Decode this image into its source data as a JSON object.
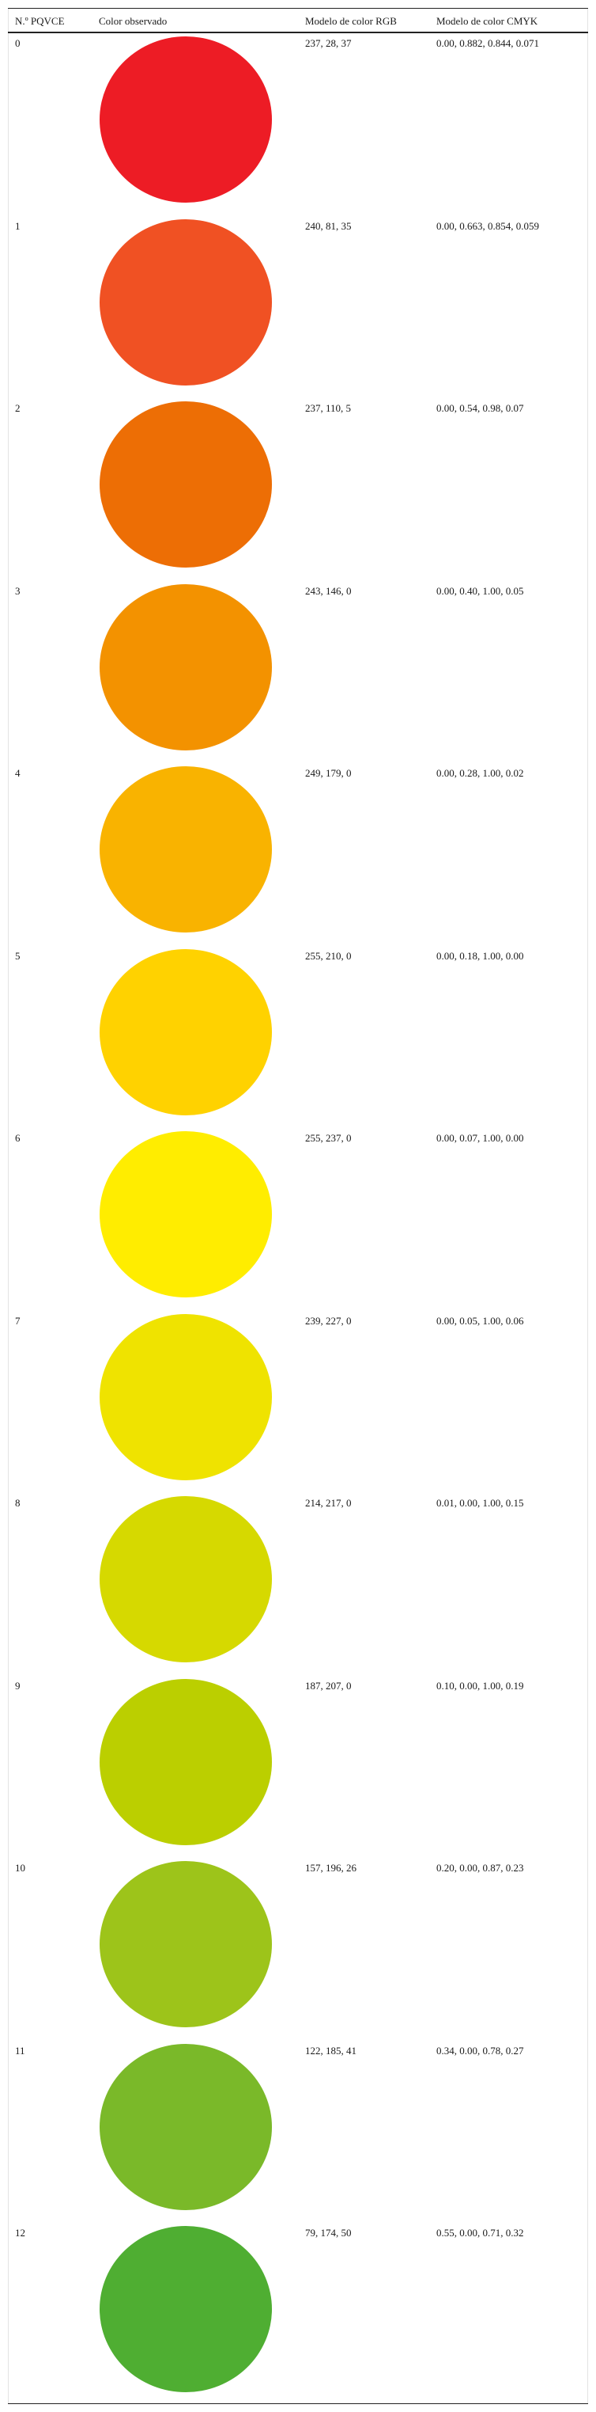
{
  "table": {
    "headers": {
      "no": "N.º PQVCE",
      "color": "Color observado",
      "rgb": "Modelo de color RGB",
      "cmyk": "Modelo de color CMYK"
    },
    "rows": [
      {
        "no": "0",
        "rgb": "237, 28, 37",
        "cmyk": "0.00, 0.882, 0.844, 0.071",
        "color": "#ED1C25"
      },
      {
        "no": "1",
        "rgb": "240, 81, 35",
        "cmyk": "0.00, 0.663, 0.854, 0.059",
        "color": "#F05123"
      },
      {
        "no": "2",
        "rgb": "237, 110, 5",
        "cmyk": "0.00, 0.54, 0.98, 0.07",
        "color": "#ED6E05"
      },
      {
        "no": "3",
        "rgb": "243, 146, 0",
        "cmyk": "0.00, 0.40, 1.00, 0.05",
        "color": "#F39200"
      },
      {
        "no": "4",
        "rgb": "249, 179, 0",
        "cmyk": "0.00, 0.28, 1.00, 0.02",
        "color": "#F9B300"
      },
      {
        "no": "5",
        "rgb": "255, 210, 0",
        "cmyk": "0.00, 0.18, 1.00, 0.00",
        "color": "#FFD200"
      },
      {
        "no": "6",
        "rgb": "255, 237, 0",
        "cmyk": "0.00, 0.07, 1.00, 0.00",
        "color": "#FFED00"
      },
      {
        "no": "7",
        "rgb": "239, 227, 0",
        "cmyk": "0.00, 0.05, 1.00, 0.06",
        "color": "#EFE300"
      },
      {
        "no": "8",
        "rgb": "214, 217, 0",
        "cmyk": "0.01, 0.00, 1.00, 0.15",
        "color": "#D6D900"
      },
      {
        "no": "9",
        "rgb": "187, 207, 0",
        "cmyk": "0.10, 0.00, 1.00, 0.19",
        "color": "#BBCF00"
      },
      {
        "no": "10",
        "rgb": "157, 196, 26",
        "cmyk": "0.20, 0.00, 0.87, 0.23",
        "color": "#9DC41A"
      },
      {
        "no": "11",
        "rgb": "122, 185, 41",
        "cmyk": "0.34, 0.00, 0.78, 0.27",
        "color": "#7AB929"
      },
      {
        "no": "12",
        "rgb": "79, 174, 50",
        "cmyk": "0.55, 0.00, 0.71, 0.32",
        "color": "#4FAE32"
      }
    ]
  }
}
